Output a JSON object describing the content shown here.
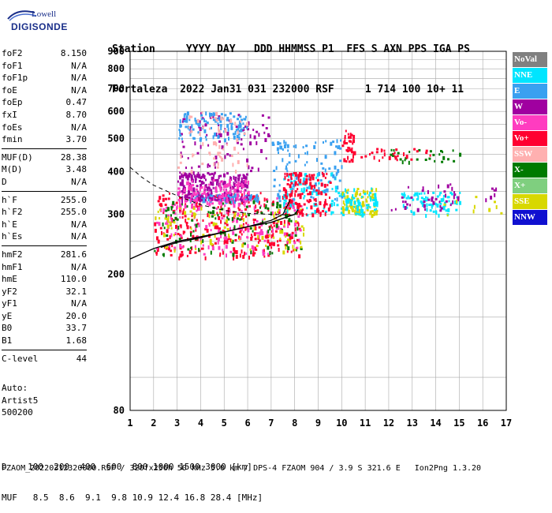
{
  "logo": {
    "line1": "Lowell",
    "line2": "DIGISONDE"
  },
  "header": {
    "line1": "Station     YYYY DAY   DDD HHMMSS P1  FFS S AXN PPS IGA PS",
    "line2": "Fortaleza  2022 Jan31 031 232000 RSF     1 714 100 10+ 11"
  },
  "parameters": [
    [
      {
        "label": "foF2",
        "value": "8.150"
      },
      {
        "label": "foF1",
        "value": "N/A"
      },
      {
        "label": "foF1p",
        "value": "N/A"
      },
      {
        "label": "foE",
        "value": "N/A"
      },
      {
        "label": "foEp",
        "value": "0.47"
      },
      {
        "label": "fxI",
        "value": "8.70"
      },
      {
        "label": "foEs",
        "value": "N/A"
      },
      {
        "label": "fmin",
        "value": "3.70"
      }
    ],
    [
      {
        "label": "MUF(D)",
        "value": "28.38"
      },
      {
        "label": "M(D)",
        "value": "3.48"
      },
      {
        "label": "D",
        "value": "N/A"
      }
    ],
    [
      {
        "label": "h`F",
        "value": "255.0"
      },
      {
        "label": "h`F2",
        "value": "255.0"
      },
      {
        "label": "h`E",
        "value": "N/A"
      },
      {
        "label": "h`Es",
        "value": "N/A"
      }
    ],
    [
      {
        "label": "hmF2",
        "value": "281.6"
      },
      {
        "label": "hmF1",
        "value": "N/A"
      },
      {
        "label": "hmE",
        "value": "110.0"
      },
      {
        "label": "yF2",
        "value": "32.1"
      },
      {
        "label": "yF1",
        "value": "N/A"
      },
      {
        "label": "yE",
        "value": "20.0"
      },
      {
        "label": "B0",
        "value": "33.7"
      },
      {
        "label": "B1",
        "value": "1.68"
      }
    ],
    [
      {
        "label": "C-level",
        "value": "44"
      }
    ]
  ],
  "auto": {
    "line1": "Auto:",
    "line2": "Artist5",
    "line3": "500200"
  },
  "footer": {
    "line1": "D    100  200  400  600  800 1000 1500 3000 [km]",
    "line2": "MUF   8.5  8.6  9.1  9.8 10.9 12.4 16.8 28.4 [MHz]",
    "file": "FZAOM_20220312320000.RSF / 320fx256h 50 kHz 5.0 km / DPS-4 FZAOM 904 / 3.9 S 321.6 E   Ion2Png 1.3.20"
  },
  "legend": [
    {
      "label": "NoVal",
      "color": "#808080"
    },
    {
      "label": "NNE",
      "color": "#00e5ff"
    },
    {
      "label": "E",
      "color": "#3aa0f0"
    },
    {
      "label": "W",
      "color": "#a000a0"
    },
    {
      "label": "Vo-",
      "color": "#ff3cc0"
    },
    {
      "label": "Vo+",
      "color": "#ff0030"
    },
    {
      "label": "SSW",
      "color": "#ffb0b0"
    },
    {
      "label": "X-",
      "color": "#007a00"
    },
    {
      "label": "X+",
      "color": "#7fcf7f"
    },
    {
      "label": "SSE",
      "color": "#d8d800"
    },
    {
      "label": "NNW",
      "color": "#1010d0"
    }
  ],
  "chart_data": {
    "type": "scatter",
    "title": "",
    "xlabel": "",
    "ylabel": "",
    "xlim": [
      1,
      17
    ],
    "ylim": [
      80,
      900
    ],
    "x_ticks": [
      1,
      2,
      3,
      4,
      5,
      6,
      7,
      8,
      9,
      10,
      11,
      12,
      13,
      14,
      15,
      16,
      17
    ],
    "y_ticks": [
      80,
      200,
      300,
      400,
      500,
      600,
      700,
      800,
      900
    ],
    "y_scale": "log",
    "grid": true,
    "profile": {
      "x": [
        1.0,
        1.5,
        2.0,
        3.0,
        4.0,
        5.0,
        6.0,
        7.0,
        7.5,
        8.0,
        8.15
      ],
      "y": [
        222,
        230,
        238,
        250,
        258,
        266,
        276,
        284,
        292,
        300,
        310
      ]
    },
    "trace_x": {
      "x": [
        2.3,
        3.0,
        4.0,
        5.0,
        6.0,
        7.0,
        7.5,
        7.8
      ],
      "y": [
        240,
        248,
        256,
        266,
        276,
        288,
        300,
        330
      ]
    },
    "muf_curve": {
      "x": [
        1.0,
        1.5,
        2.0,
        3.0,
        4.0,
        5.0,
        6.0,
        7.0,
        8.0
      ],
      "y": [
        412,
        385,
        365,
        340,
        320,
        308,
        302,
        300,
        298
      ]
    },
    "echo_clusters": [
      {
        "series": "Vo+",
        "x": [
          2,
          8.3
        ],
        "y": [
          225,
          350
        ],
        "n": 320
      },
      {
        "series": "Vo-",
        "x": [
          2,
          8.3
        ],
        "y": [
          230,
          340
        ],
        "n": 160
      },
      {
        "series": "X-",
        "x": [
          2,
          8.3
        ],
        "y": [
          230,
          330
        ],
        "n": 100
      },
      {
        "series": "SSE",
        "x": [
          2,
          8.5
        ],
        "y": [
          230,
          320
        ],
        "n": 90
      },
      {
        "series": "E",
        "x": [
          3.5,
          6.5
        ],
        "y": [
          330,
          345
        ],
        "n": 80
      },
      {
        "series": "W",
        "x": [
          3,
          6
        ],
        "y": [
          330,
          400
        ],
        "n": 220
      },
      {
        "series": "Vo-",
        "x": [
          3,
          6
        ],
        "y": [
          320,
          380
        ],
        "n": 120
      },
      {
        "series": "W",
        "x": [
          3,
          7
        ],
        "y": [
          400,
          600
        ],
        "n": 90
      },
      {
        "series": "E",
        "x": [
          3,
          6
        ],
        "y": [
          500,
          600
        ],
        "n": 110
      },
      {
        "series": "SSW",
        "x": [
          3,
          6
        ],
        "y": [
          400,
          600
        ],
        "n": 60
      },
      {
        "series": "NNE",
        "x": [
          7.5,
          10
        ],
        "y": [
          300,
          400
        ],
        "n": 80
      },
      {
        "series": "E",
        "x": [
          7,
          10
        ],
        "y": [
          330,
          500
        ],
        "n": 100
      },
      {
        "series": "Vo+",
        "x": [
          7.5,
          9.5
        ],
        "y": [
          300,
          400
        ],
        "n": 120
      },
      {
        "series": "SSE",
        "x": [
          10,
          11.5
        ],
        "y": [
          300,
          360
        ],
        "n": 90
      },
      {
        "series": "NNE",
        "x": [
          10,
          11.5
        ],
        "y": [
          300,
          360
        ],
        "n": 60
      },
      {
        "series": "Vo+",
        "x": [
          10,
          10.5
        ],
        "y": [
          430,
          530
        ],
        "n": 40
      },
      {
        "series": "NNE",
        "x": [
          12.5,
          15
        ],
        "y": [
          300,
          350
        ],
        "n": 80
      },
      {
        "series": "W",
        "x": [
          12,
          15
        ],
        "y": [
          310,
          370
        ],
        "n": 40
      },
      {
        "series": "X-",
        "x": [
          12,
          15
        ],
        "y": [
          430,
          470
        ],
        "n": 30
      },
      {
        "series": "Vo+",
        "x": [
          10.5,
          14
        ],
        "y": [
          430,
          470
        ],
        "n": 30
      },
      {
        "series": "SSE",
        "x": [
          14,
          16.8
        ],
        "y": [
          300,
          340
        ],
        "n": 10
      },
      {
        "series": "W",
        "x": [
          16,
          16.8
        ],
        "y": [
          330,
          360
        ],
        "n": 6
      }
    ]
  }
}
